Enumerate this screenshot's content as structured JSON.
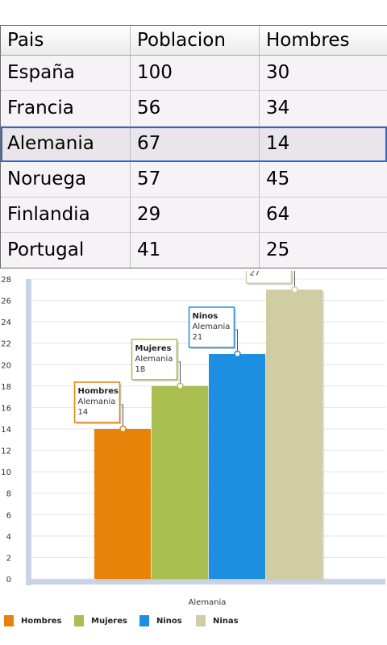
{
  "table": {
    "headers": [
      "Pais",
      "Poblacion",
      "Hombres"
    ],
    "rows": [
      [
        "España",
        "100",
        "30"
      ],
      [
        "Francia",
        "56",
        "34"
      ],
      [
        "Alemania",
        "67",
        "14"
      ],
      [
        "Noruega",
        "57",
        "45"
      ],
      [
        "Finlandia",
        "29",
        "64"
      ],
      [
        "Portugal",
        "41",
        "25"
      ]
    ],
    "selected_row": "Alemania"
  },
  "chart_data": {
    "type": "bar",
    "categories": [
      "Alemania"
    ],
    "series": [
      {
        "name": "Hombres",
        "values": [
          14
        ],
        "color": "#e8830a"
      },
      {
        "name": "Mujeres",
        "values": [
          18
        ],
        "color": "#a8bf4f"
      },
      {
        "name": "Ninos",
        "values": [
          21
        ],
        "color": "#1c8fe0"
      },
      {
        "name": "Ninas",
        "values": [
          27
        ],
        "color": "#d1cda3"
      }
    ],
    "xlabel": "Alemania",
    "ylim": [
      0,
      28
    ],
    "yticks": [
      0,
      2,
      4,
      6,
      8,
      10,
      12,
      14,
      16,
      18,
      20,
      22,
      24,
      26,
      28
    ],
    "grid": true,
    "legend_position": "bottom"
  }
}
